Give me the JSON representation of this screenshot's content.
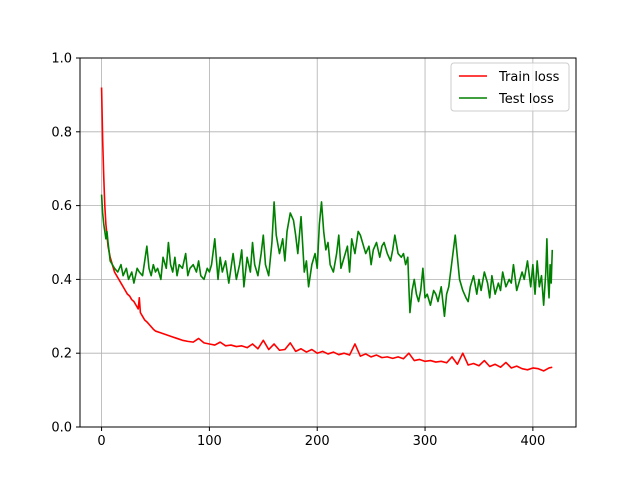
{
  "chart_data": {
    "type": "line",
    "title": "",
    "xlabel": "",
    "ylabel": "",
    "xlim": [
      -20,
      440
    ],
    "ylim": [
      0,
      1.0
    ],
    "xticks": [
      0,
      100,
      200,
      300,
      400
    ],
    "yticks": [
      0.0,
      0.2,
      0.4,
      0.6,
      0.8,
      1.0
    ],
    "xtick_labels": [
      "0",
      "100",
      "200",
      "300",
      "400"
    ],
    "ytick_labels": [
      "0.0",
      "0.2",
      "0.4",
      "0.6",
      "0.8",
      "1.0"
    ],
    "grid": true,
    "legend_position": "top-right",
    "series": [
      {
        "name": "Train loss",
        "color": "#ff0000",
        "points": [
          [
            0,
            0.92
          ],
          [
            1,
            0.78
          ],
          [
            2,
            0.68
          ],
          [
            3,
            0.6
          ],
          [
            4,
            0.55
          ],
          [
            5,
            0.52
          ],
          [
            6,
            0.49
          ],
          [
            8,
            0.46
          ],
          [
            10,
            0.44
          ],
          [
            12,
            0.42
          ],
          [
            14,
            0.41
          ],
          [
            16,
            0.4
          ],
          [
            18,
            0.39
          ],
          [
            20,
            0.38
          ],
          [
            22,
            0.37
          ],
          [
            24,
            0.36
          ],
          [
            26,
            0.355
          ],
          [
            28,
            0.345
          ],
          [
            30,
            0.34
          ],
          [
            32,
            0.33
          ],
          [
            34,
            0.32
          ],
          [
            35,
            0.35
          ],
          [
            36,
            0.31
          ],
          [
            38,
            0.3
          ],
          [
            40,
            0.29
          ],
          [
            42,
            0.285
          ],
          [
            45,
            0.275
          ],
          [
            48,
            0.265
          ],
          [
            50,
            0.26
          ],
          [
            55,
            0.255
          ],
          [
            60,
            0.25
          ],
          [
            65,
            0.245
          ],
          [
            70,
            0.24
          ],
          [
            75,
            0.235
          ],
          [
            80,
            0.232
          ],
          [
            85,
            0.23
          ],
          [
            90,
            0.24
          ],
          [
            95,
            0.228
          ],
          [
            100,
            0.225
          ],
          [
            105,
            0.222
          ],
          [
            110,
            0.23
          ],
          [
            115,
            0.22
          ],
          [
            120,
            0.222
          ],
          [
            125,
            0.218
          ],
          [
            130,
            0.22
          ],
          [
            135,
            0.215
          ],
          [
            140,
            0.225
          ],
          [
            145,
            0.212
          ],
          [
            150,
            0.235
          ],
          [
            155,
            0.21
          ],
          [
            160,
            0.225
          ],
          [
            165,
            0.208
          ],
          [
            170,
            0.21
          ],
          [
            175,
            0.228
          ],
          [
            180,
            0.205
          ],
          [
            185,
            0.212
          ],
          [
            190,
            0.203
          ],
          [
            195,
            0.21
          ],
          [
            200,
            0.2
          ],
          [
            205,
            0.205
          ],
          [
            210,
            0.198
          ],
          [
            215,
            0.203
          ],
          [
            220,
            0.196
          ],
          [
            225,
            0.2
          ],
          [
            230,
            0.195
          ],
          [
            235,
            0.225
          ],
          [
            240,
            0.192
          ],
          [
            245,
            0.198
          ],
          [
            250,
            0.19
          ],
          [
            255,
            0.195
          ],
          [
            260,
            0.188
          ],
          [
            265,
            0.19
          ],
          [
            270,
            0.186
          ],
          [
            275,
            0.19
          ],
          [
            280,
            0.185
          ],
          [
            285,
            0.2
          ],
          [
            290,
            0.18
          ],
          [
            295,
            0.183
          ],
          [
            300,
            0.178
          ],
          [
            305,
            0.18
          ],
          [
            310,
            0.176
          ],
          [
            315,
            0.178
          ],
          [
            320,
            0.174
          ],
          [
            325,
            0.19
          ],
          [
            330,
            0.17
          ],
          [
            335,
            0.2
          ],
          [
            340,
            0.168
          ],
          [
            345,
            0.172
          ],
          [
            350,
            0.166
          ],
          [
            355,
            0.18
          ],
          [
            360,
            0.164
          ],
          [
            365,
            0.17
          ],
          [
            370,
            0.162
          ],
          [
            375,
            0.175
          ],
          [
            380,
            0.16
          ],
          [
            385,
            0.165
          ],
          [
            390,
            0.158
          ],
          [
            395,
            0.155
          ],
          [
            400,
            0.16
          ],
          [
            405,
            0.158
          ],
          [
            410,
            0.152
          ],
          [
            415,
            0.16
          ],
          [
            418,
            0.162
          ]
        ]
      },
      {
        "name": "Test loss",
        "color": "#008000",
        "points": [
          [
            0,
            0.63
          ],
          [
            1,
            0.58
          ],
          [
            2,
            0.55
          ],
          [
            3,
            0.53
          ],
          [
            4,
            0.51
          ],
          [
            5,
            0.53
          ],
          [
            6,
            0.5
          ],
          [
            8,
            0.45
          ],
          [
            10,
            0.44
          ],
          [
            12,
            0.43
          ],
          [
            15,
            0.42
          ],
          [
            18,
            0.44
          ],
          [
            20,
            0.41
          ],
          [
            23,
            0.43
          ],
          [
            25,
            0.4
          ],
          [
            28,
            0.42
          ],
          [
            30,
            0.39
          ],
          [
            33,
            0.43
          ],
          [
            35,
            0.42
          ],
          [
            38,
            0.41
          ],
          [
            40,
            0.45
          ],
          [
            42,
            0.49
          ],
          [
            44,
            0.43
          ],
          [
            46,
            0.41
          ],
          [
            48,
            0.44
          ],
          [
            50,
            0.42
          ],
          [
            52,
            0.43
          ],
          [
            55,
            0.4
          ],
          [
            57,
            0.46
          ],
          [
            60,
            0.43
          ],
          [
            62,
            0.5
          ],
          [
            64,
            0.44
          ],
          [
            66,
            0.42
          ],
          [
            68,
            0.46
          ],
          [
            70,
            0.41
          ],
          [
            72,
            0.44
          ],
          [
            75,
            0.43
          ],
          [
            78,
            0.47
          ],
          [
            80,
            0.41
          ],
          [
            82,
            0.43
          ],
          [
            85,
            0.44
          ],
          [
            88,
            0.42
          ],
          [
            90,
            0.45
          ],
          [
            92,
            0.41
          ],
          [
            95,
            0.4
          ],
          [
            98,
            0.43
          ],
          [
            100,
            0.42
          ],
          [
            102,
            0.44
          ],
          [
            105,
            0.51
          ],
          [
            108,
            0.4
          ],
          [
            110,
            0.46
          ],
          [
            112,
            0.42
          ],
          [
            115,
            0.45
          ],
          [
            118,
            0.39
          ],
          [
            120,
            0.43
          ],
          [
            122,
            0.47
          ],
          [
            125,
            0.4
          ],
          [
            128,
            0.44
          ],
          [
            130,
            0.48
          ],
          [
            132,
            0.38
          ],
          [
            135,
            0.46
          ],
          [
            138,
            0.42
          ],
          [
            140,
            0.5
          ],
          [
            142,
            0.44
          ],
          [
            145,
            0.41
          ],
          [
            148,
            0.47
          ],
          [
            150,
            0.52
          ],
          [
            152,
            0.44
          ],
          [
            155,
            0.41
          ],
          [
            158,
            0.5
          ],
          [
            160,
            0.61
          ],
          [
            162,
            0.52
          ],
          [
            165,
            0.47
          ],
          [
            168,
            0.51
          ],
          [
            170,
            0.45
          ],
          [
            172,
            0.53
          ],
          [
            175,
            0.58
          ],
          [
            178,
            0.56
          ],
          [
            180,
            0.52
          ],
          [
            182,
            0.47
          ],
          [
            185,
            0.57
          ],
          [
            188,
            0.42
          ],
          [
            190,
            0.45
          ],
          [
            192,
            0.38
          ],
          [
            195,
            0.44
          ],
          [
            198,
            0.47
          ],
          [
            200,
            0.43
          ],
          [
            202,
            0.55
          ],
          [
            204,
            0.61
          ],
          [
            206,
            0.53
          ],
          [
            208,
            0.48
          ],
          [
            210,
            0.5
          ],
          [
            212,
            0.44
          ],
          [
            215,
            0.42
          ],
          [
            218,
            0.47
          ],
          [
            220,
            0.52
          ],
          [
            222,
            0.43
          ],
          [
            225,
            0.46
          ],
          [
            228,
            0.49
          ],
          [
            230,
            0.42
          ],
          [
            232,
            0.51
          ],
          [
            235,
            0.47
          ],
          [
            238,
            0.53
          ],
          [
            240,
            0.52
          ],
          [
            242,
            0.5
          ],
          [
            245,
            0.47
          ],
          [
            248,
            0.49
          ],
          [
            250,
            0.44
          ],
          [
            252,
            0.48
          ],
          [
            255,
            0.5
          ],
          [
            258,
            0.46
          ],
          [
            260,
            0.49
          ],
          [
            262,
            0.5
          ],
          [
            265,
            0.47
          ],
          [
            268,
            0.45
          ],
          [
            270,
            0.48
          ],
          [
            272,
            0.52
          ],
          [
            275,
            0.47
          ],
          [
            278,
            0.46
          ],
          [
            280,
            0.47
          ],
          [
            282,
            0.44
          ],
          [
            284,
            0.46
          ],
          [
            285,
            0.38
          ],
          [
            286,
            0.31
          ],
          [
            288,
            0.37
          ],
          [
            290,
            0.4
          ],
          [
            292,
            0.36
          ],
          [
            294,
            0.34
          ],
          [
            296,
            0.37
          ],
          [
            298,
            0.43
          ],
          [
            300,
            0.35
          ],
          [
            302,
            0.36
          ],
          [
            305,
            0.33
          ],
          [
            308,
            0.37
          ],
          [
            310,
            0.36
          ],
          [
            312,
            0.34
          ],
          [
            315,
            0.38
          ],
          [
            318,
            0.3
          ],
          [
            320,
            0.36
          ],
          [
            322,
            0.38
          ],
          [
            325,
            0.45
          ],
          [
            328,
            0.52
          ],
          [
            330,
            0.46
          ],
          [
            332,
            0.4
          ],
          [
            335,
            0.37
          ],
          [
            338,
            0.35
          ],
          [
            340,
            0.34
          ],
          [
            342,
            0.38
          ],
          [
            345,
            0.41
          ],
          [
            348,
            0.36
          ],
          [
            350,
            0.4
          ],
          [
            352,
            0.37
          ],
          [
            355,
            0.42
          ],
          [
            358,
            0.39
          ],
          [
            360,
            0.35
          ],
          [
            362,
            0.41
          ],
          [
            365,
            0.36
          ],
          [
            368,
            0.39
          ],
          [
            370,
            0.37
          ],
          [
            372,
            0.42
          ],
          [
            375,
            0.38
          ],
          [
            378,
            0.4
          ],
          [
            380,
            0.39
          ],
          [
            382,
            0.44
          ],
          [
            385,
            0.37
          ],
          [
            388,
            0.4
          ],
          [
            390,
            0.42
          ],
          [
            392,
            0.4
          ],
          [
            395,
            0.45
          ],
          [
            398,
            0.38
          ],
          [
            400,
            0.44
          ],
          [
            402,
            0.36
          ],
          [
            404,
            0.45
          ],
          [
            406,
            0.38
          ],
          [
            408,
            0.41
          ],
          [
            410,
            0.33
          ],
          [
            412,
            0.42
          ],
          [
            413,
            0.51
          ],
          [
            414,
            0.4
          ],
          [
            415,
            0.35
          ],
          [
            416,
            0.44
          ],
          [
            417,
            0.39
          ],
          [
            418,
            0.48
          ]
        ]
      }
    ]
  }
}
